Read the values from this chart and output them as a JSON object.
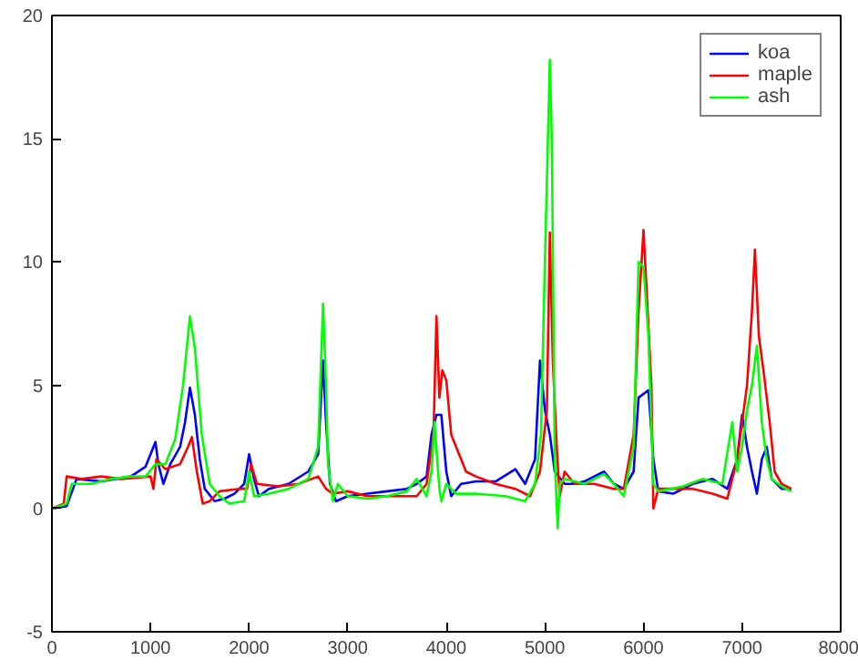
{
  "chart_data": {
    "type": "line",
    "xlim": [
      0,
      8000
    ],
    "ylim": [
      -5,
      20
    ],
    "xticks": [
      0,
      1000,
      2000,
      3000,
      4000,
      5000,
      6000,
      7000,
      8000
    ],
    "yticks": [
      -5,
      0,
      5,
      10,
      15,
      20
    ],
    "grid": false,
    "legend": "top right",
    "line_style": "solid",
    "marker": "none",
    "series": [
      {
        "name": "koa",
        "color": "#0000ff",
        "x": [
          0,
          150,
          250,
          500,
          800,
          950,
          1050,
          1080,
          1130,
          1200,
          1300,
          1350,
          1400,
          1450,
          1500,
          1550,
          1650,
          1750,
          1850,
          1950,
          2000,
          2050,
          2100,
          2200,
          2400,
          2600,
          2700,
          2750,
          2780,
          2820,
          2880,
          3000,
          3200,
          3400,
          3600,
          3700,
          3800,
          3850,
          3900,
          3950,
          4000,
          4050,
          4150,
          4300,
          4500,
          4700,
          4800,
          4900,
          4950,
          5000,
          5050,
          5100,
          5200,
          5300,
          5400,
          5600,
          5700,
          5800,
          5900,
          5950,
          6050,
          6100,
          6150,
          6300,
          6500,
          6700,
          6850,
          6950,
          7000,
          7050,
          7100,
          7150,
          7200,
          7250,
          7300,
          7400,
          7500
        ],
        "values": [
          0,
          0.1,
          1.2,
          1.1,
          1.3,
          1.7,
          2.7,
          1.8,
          1.0,
          1.8,
          2.5,
          3.5,
          4.9,
          3.8,
          2.0,
          0.8,
          0.3,
          0.4,
          0.6,
          1.0,
          2.2,
          1.2,
          0.5,
          0.8,
          1.0,
          1.5,
          2.2,
          6.0,
          3.5,
          1.0,
          0.3,
          0.5,
          0.6,
          0.7,
          0.8,
          1.0,
          1.3,
          3.0,
          3.8,
          3.8,
          1.5,
          0.5,
          1.0,
          1.1,
          1.1,
          1.6,
          1.0,
          2.0,
          6.0,
          4.0,
          3.0,
          1.5,
          1.0,
          1.0,
          1.1,
          1.5,
          1.0,
          0.8,
          1.5,
          4.5,
          4.8,
          2.0,
          0.7,
          0.6,
          1.0,
          1.2,
          0.8,
          2.0,
          3.8,
          2.5,
          1.5,
          0.6,
          2.0,
          2.5,
          1.2,
          0.8,
          0.8
        ]
      },
      {
        "name": "maple",
        "color": "#ff0000",
        "x": [
          0,
          120,
          150,
          300,
          500,
          700,
          1000,
          1030,
          1060,
          1150,
          1300,
          1380,
          1420,
          1470,
          1530,
          1600,
          1700,
          1900,
          1980,
          2020,
          2080,
          2300,
          2500,
          2700,
          2780,
          2850,
          3000,
          3200,
          3500,
          3700,
          3800,
          3870,
          3900,
          3930,
          3960,
          4000,
          4050,
          4100,
          4200,
          4300,
          4500,
          4700,
          4850,
          4950,
          5020,
          5050,
          5080,
          5120,
          5150,
          5200,
          5300,
          5500,
          5700,
          5800,
          5900,
          5950,
          6000,
          6030,
          6080,
          6100,
          6150,
          6300,
          6500,
          6700,
          6850,
          6950,
          7050,
          7100,
          7130,
          7170,
          7220,
          7280,
          7330,
          7400,
          7500
        ],
        "values": [
          0,
          0.2,
          1.3,
          1.2,
          1.3,
          1.2,
          1.3,
          0.8,
          2.0,
          1.6,
          1.8,
          2.5,
          2.9,
          1.5,
          0.2,
          0.3,
          0.7,
          0.8,
          0.8,
          1.8,
          1.0,
          0.9,
          1.0,
          1.3,
          0.8,
          0.6,
          0.7,
          0.5,
          0.5,
          0.5,
          1.0,
          3.0,
          7.8,
          4.5,
          5.6,
          5.2,
          3.0,
          2.5,
          1.5,
          1.3,
          1.0,
          0.8,
          0.5,
          1.5,
          4.0,
          11.2,
          6.0,
          2.5,
          0.5,
          1.5,
          1.0,
          1.0,
          0.8,
          0.8,
          3.0,
          8.0,
          11.3,
          9.0,
          5.0,
          0.0,
          0.8,
          0.8,
          0.8,
          0.6,
          0.4,
          2.0,
          5.0,
          8.0,
          10.5,
          7.0,
          5.5,
          3.5,
          1.5,
          1.0,
          0.8
        ]
      },
      {
        "name": "ash",
        "color": "#00ff00",
        "x": [
          0,
          150,
          200,
          400,
          600,
          800,
          950,
          1050,
          1150,
          1250,
          1330,
          1400,
          1450,
          1520,
          1600,
          1700,
          1800,
          1950,
          2000,
          2050,
          2200,
          2400,
          2600,
          2700,
          2750,
          2780,
          2800,
          2850,
          2900,
          3000,
          3200,
          3400,
          3600,
          3700,
          3800,
          3850,
          3880,
          3930,
          3950,
          4000,
          4100,
          4300,
          4600,
          4800,
          4900,
          4960,
          5000,
          5050,
          5070,
          5100,
          5130,
          5150,
          5200,
          5400,
          5600,
          5700,
          5800,
          5900,
          5950,
          6000,
          6050,
          6100,
          6150,
          6400,
          6600,
          6800,
          6900,
          6950,
          7000,
          7050,
          7100,
          7150,
          7200,
          7250,
          7300,
          7400,
          7500
        ],
        "values": [
          0,
          0.2,
          1.0,
          1.0,
          1.2,
          1.3,
          1.3,
          1.8,
          1.8,
          2.8,
          5.0,
          7.8,
          6.5,
          3.0,
          1.0,
          0.5,
          0.2,
          0.3,
          1.5,
          0.5,
          0.6,
          0.8,
          1.2,
          2.5,
          8.3,
          5.0,
          1.8,
          0.3,
          1.0,
          0.5,
          0.4,
          0.5,
          0.7,
          1.2,
          0.5,
          1.5,
          3.5,
          0.8,
          0.3,
          1.0,
          0.6,
          0.6,
          0.5,
          0.3,
          1.0,
          3.0,
          10.0,
          18.2,
          15.0,
          2.0,
          -0.8,
          1.0,
          1.2,
          1.0,
          1.4,
          1.0,
          0.5,
          2.5,
          10.0,
          9.8,
          7.0,
          1.0,
          0.7,
          0.9,
          1.2,
          1.0,
          3.5,
          1.5,
          2.5,
          4.0,
          5.0,
          6.6,
          3.5,
          2.0,
          1.2,
          0.9,
          0.7
        ]
      }
    ]
  }
}
